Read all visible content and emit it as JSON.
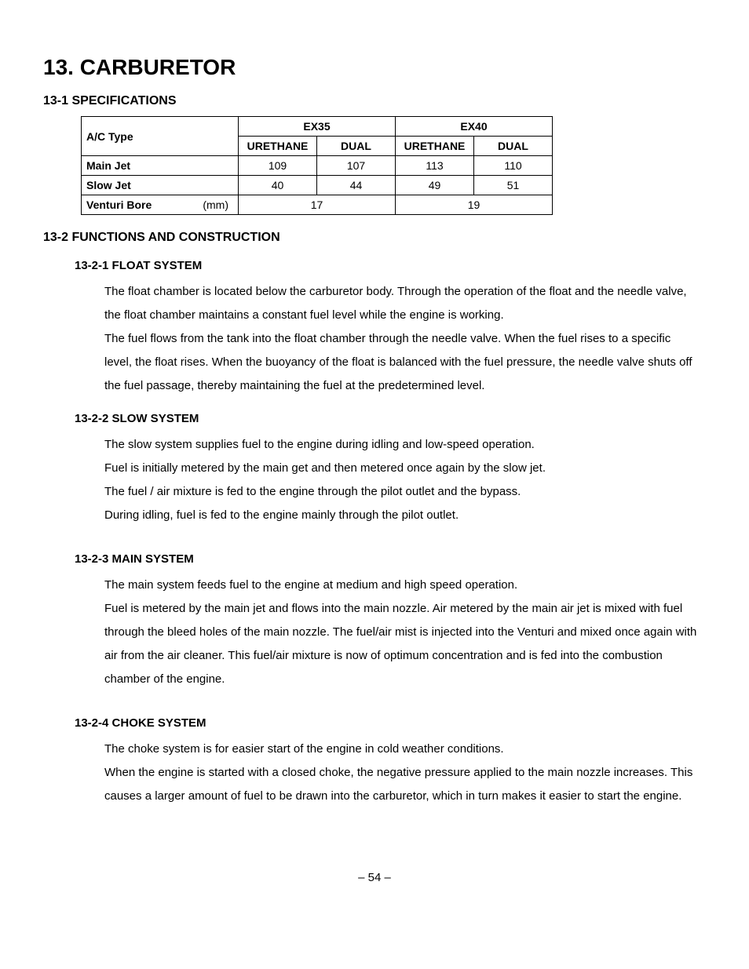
{
  "chapter": {
    "title": "13. CARBURETOR"
  },
  "sections": {
    "specifications": {
      "title": "13-1 SPECIFICATIONS",
      "table": {
        "col_groups": [
          "EX35",
          "EX40"
        ],
        "subheaders": [
          "URETHANE",
          "DUAL",
          "URETHANE",
          "DUAL"
        ],
        "rows": {
          "ac_type": {
            "label": "A/C Type"
          },
          "main_jet": {
            "label": "Main Jet",
            "values": [
              "109",
              "107",
              "113",
              "110"
            ]
          },
          "slow_jet": {
            "label": "Slow Jet",
            "values": [
              "40",
              "44",
              "49",
              "51"
            ]
          },
          "venturi": {
            "label": "Venturi Bore",
            "unit": "(mm)",
            "merged": [
              "17",
              "19"
            ]
          }
        }
      }
    },
    "functions": {
      "title": "13-2 FUNCTIONS AND CONSTRUCTION",
      "subsections": {
        "float": {
          "title": "13-2-1 FLOAT SYSTEM",
          "paragraphs": [
            "The float chamber is located below the carburetor body. Through the operation of the float and the needle valve, the float chamber maintains a constant fuel level while the engine is working.",
            "The fuel flows from the tank into the float chamber through the needle valve. When the fuel rises to a specific level, the float rises. When the buoyancy of the float is balanced with the fuel pressure, the needle valve shuts off the fuel passage, thereby maintaining the fuel at the predetermined level."
          ]
        },
        "slow": {
          "title": "13-2-2 SLOW SYSTEM",
          "paragraphs": [
            "The slow system supplies fuel to the engine during idling and low-speed operation.",
            "Fuel is initially metered by the main get and then metered once again by the slow jet.",
            "The fuel / air mixture is fed to the engine through the pilot outlet and the bypass.",
            "During idling, fuel is fed to the engine mainly through the pilot outlet."
          ]
        },
        "main": {
          "title": "13-2-3 MAIN SYSTEM",
          "paragraphs": [
            "The main system feeds fuel to the engine at medium and high speed operation.",
            "Fuel is metered by the main jet and flows into the main nozzle. Air metered by the main air jet is mixed with fuel through the bleed holes of the main nozzle. The fuel/air mist is injected into the Venturi and mixed once again with air from the air cleaner. This fuel/air mixture is now of optimum concentration and is fed into the combustion chamber of the engine."
          ]
        },
        "choke": {
          "title": "13-2-4 CHOKE SYSTEM",
          "paragraphs": [
            "The choke system is for easier start of the engine in cold weather conditions.",
            "When the engine is started with a closed choke, the negative pressure applied to the main nozzle increases. This causes a larger amount of fuel to be drawn into the carburetor, which in turn makes it easier to start the engine."
          ]
        }
      }
    }
  },
  "footer": {
    "page_number": "–  54  –"
  }
}
